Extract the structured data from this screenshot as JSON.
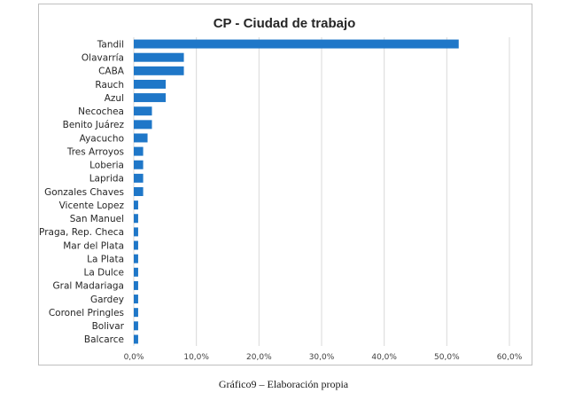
{
  "chart_data": {
    "type": "bar",
    "orientation": "horizontal",
    "title": "CP - Ciudad de trabajo",
    "xlabel": "",
    "ylabel": "",
    "categories": [
      "Tandil",
      "Olavarría",
      "CABA",
      "Rauch",
      "Azul",
      "Necochea",
      "Benito Juárez",
      "Ayacucho",
      "Tres Arroyos",
      "Loberia",
      "Laprida",
      "Gonzales Chaves",
      "Vicente Lopez",
      "San Manuel",
      "Praga, Rep. Checa",
      "Mar del Plata",
      "La Plata",
      "La Dulce",
      "Gral Madariaga",
      "Gardey",
      "Coronel Pringles",
      "Bolivar",
      "Balcarce"
    ],
    "values": [
      51.9,
      8.0,
      8.0,
      5.1,
      5.1,
      2.9,
      2.9,
      2.2,
      1.5,
      1.5,
      1.5,
      1.5,
      0.7,
      0.7,
      0.7,
      0.7,
      0.7,
      0.7,
      0.7,
      0.7,
      0.7,
      0.7,
      0.7
    ],
    "xlim": [
      0,
      60
    ],
    "xticks": [
      "0,0%",
      "10,0%",
      "20,0%",
      "30,0%",
      "40,0%",
      "50,0%",
      "60,0%"
    ],
    "grid": "vertical",
    "legend": "none",
    "bar_color": "#1f77c8",
    "grid_color": "#d9d9d9"
  },
  "caption": "Gráfico9 – Elaboración propia"
}
